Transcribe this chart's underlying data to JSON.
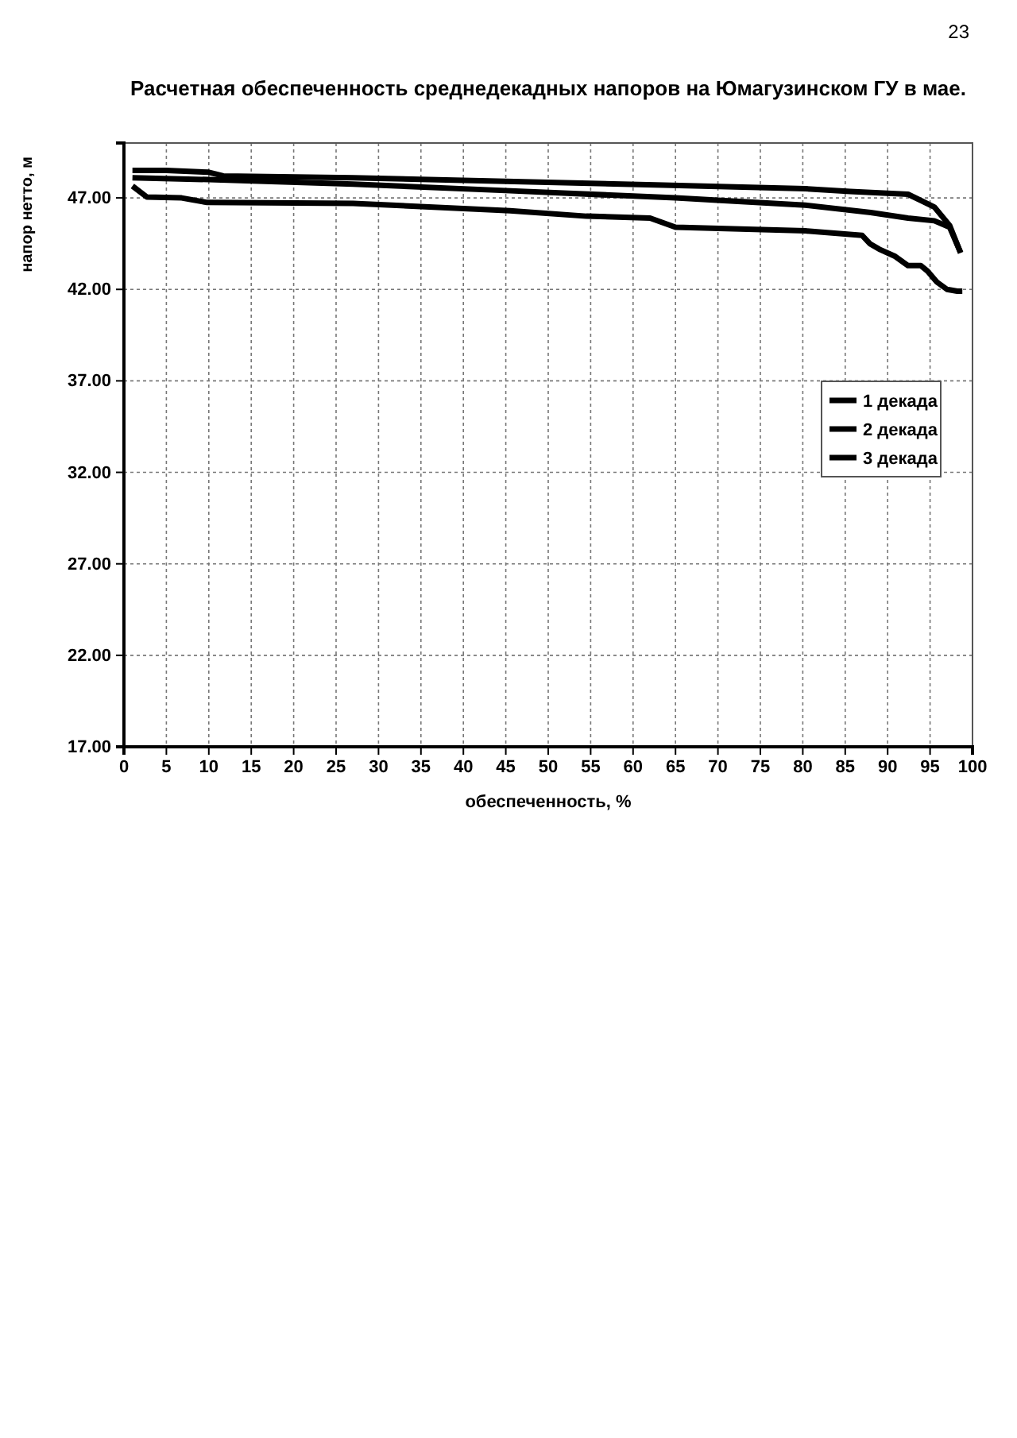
{
  "chart_data": {
    "type": "line",
    "title": "Расчетная обеспеченность среднедекадных напоров на Юмагузинском ГУ в мае.",
    "xlabel": "обеспеченность, %",
    "ylabel": "напор нетто, м",
    "annotations": [
      "23"
    ],
    "xlim": [
      0,
      100
    ],
    "xticks": [
      0,
      5,
      10,
      15,
      20,
      25,
      30,
      35,
      40,
      45,
      50,
      55,
      60,
      65,
      70,
      75,
      80,
      85,
      90,
      95,
      100
    ],
    "ylim": [
      17,
      50
    ],
    "yticks": [
      {
        "value": 17,
        "label": "17.00"
      },
      {
        "value": 22,
        "label": "22.00"
      },
      {
        "value": 27,
        "label": "27.00"
      },
      {
        "value": 32,
        "label": "32.00"
      },
      {
        "value": 37,
        "label": "37.00"
      },
      {
        "value": 42,
        "label": "42.00"
      },
      {
        "value": 47,
        "label": "47.00"
      }
    ],
    "grid": true,
    "legend": "top right",
    "marker": "none",
    "line_style": "solid",
    "series": [
      {
        "name": "1 декада",
        "color": "#000000",
        "x": [
          1,
          5,
          10,
          11.7,
          27,
          45,
          63.6,
          80.3,
          85.6,
          92.4,
          95.5,
          97.3,
          98.6
        ],
        "values": [
          48.5,
          48.5,
          48.4,
          48.2,
          48.1,
          47.9,
          47.7,
          47.5,
          47.35,
          47.2,
          46.5,
          45.5,
          44.0
        ]
      },
      {
        "name": "2 декада",
        "color": "#000000",
        "x": [
          1,
          10,
          27,
          45,
          65,
          80.3,
          88,
          92.4,
          95.5,
          97.3,
          98.6
        ],
        "values": [
          48.1,
          48.0,
          47.75,
          47.4,
          47.0,
          46.6,
          46.2,
          45.9,
          45.75,
          45.4,
          44.0
        ]
      },
      {
        "name": "3 декада",
        "color": "#000000",
        "x": [
          1,
          2.7,
          6.8,
          9.8,
          27,
          45.5,
          54.5,
          62,
          65,
          80.3,
          87,
          87.9,
          89,
          90.9,
          92.4,
          93.9,
          94.7,
          95.8,
          97,
          98.2,
          98.8
        ],
        "values": [
          47.65,
          47.05,
          47.0,
          46.75,
          46.7,
          46.3,
          46.0,
          45.9,
          45.4,
          45.2,
          44.95,
          44.5,
          44.2,
          43.8,
          43.3,
          43.3,
          43.0,
          42.4,
          42.0,
          41.9,
          41.9
        ]
      }
    ]
  }
}
